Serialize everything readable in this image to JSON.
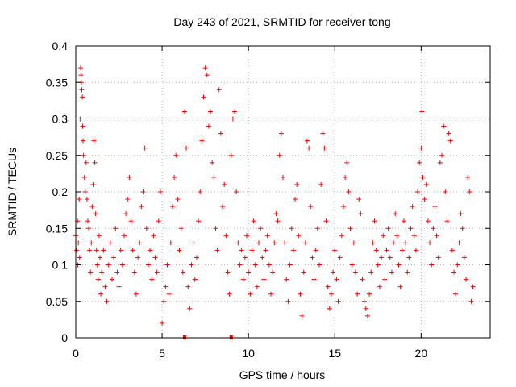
{
  "chart_data": {
    "type": "scatter",
    "title": "Day 243 of 2021, SRMTID for receiver tong",
    "xlabel": "GPS time / hours",
    "ylabel": "SRMTID / TECUs",
    "xlim": [
      0,
      24
    ],
    "ylim": [
      0,
      0.4
    ],
    "grid": true,
    "x_ticks": [
      0,
      5,
      10,
      15,
      20
    ],
    "x_tick_labels": [
      "0",
      "5",
      "10",
      "15",
      "20"
    ],
    "y_ticks": [
      0,
      0.05,
      0.1,
      0.15,
      0.2,
      0.25,
      0.3,
      0.35,
      0.4
    ],
    "y_tick_labels": [
      "0",
      "0.05",
      "0.1",
      "0.15",
      "0.2",
      "0.25",
      "0.3",
      "0.35",
      "0.4"
    ],
    "marker": "+",
    "color": "#ff0000",
    "series": [
      {
        "name": "SRMTID",
        "points": [
          [
            0.0,
            0.14
          ],
          [
            0.05,
            0.12
          ],
          [
            0.1,
            0.16
          ],
          [
            0.12,
            0.1
          ],
          [
            0.15,
            0.13
          ],
          [
            0.2,
            0.19
          ],
          [
            0.22,
            0.11
          ],
          [
            0.25,
            0.3
          ],
          [
            0.28,
            0.37
          ],
          [
            0.3,
            0.36
          ],
          [
            0.32,
            0.35
          ],
          [
            0.35,
            0.34
          ],
          [
            0.38,
            0.33
          ],
          [
            0.4,
            0.29
          ],
          [
            0.42,
            0.27
          ],
          [
            0.45,
            0.25
          ],
          [
            0.5,
            0.22
          ],
          [
            0.55,
            0.2
          ],
          [
            0.6,
            0.24
          ],
          [
            0.65,
            0.19
          ],
          [
            0.7,
            0.16
          ],
          [
            0.75,
            0.15
          ],
          [
            0.8,
            0.12
          ],
          [
            0.85,
            0.09
          ],
          [
            0.9,
            0.13
          ],
          [
            0.95,
            0.18
          ],
          [
            1.0,
            0.21
          ],
          [
            1.05,
            0.27
          ],
          [
            1.1,
            0.24
          ],
          [
            1.15,
            0.17
          ],
          [
            1.2,
            0.12
          ],
          [
            1.25,
            0.1
          ],
          [
            1.3,
            0.08
          ],
          [
            1.35,
            0.14
          ],
          [
            1.4,
            0.11
          ],
          [
            1.45,
            0.06
          ],
          [
            1.5,
            0.09
          ],
          [
            1.6,
            0.12
          ],
          [
            1.7,
            0.07
          ],
          [
            1.8,
            0.05
          ],
          [
            1.9,
            0.1
          ],
          [
            2.0,
            0.13
          ],
          [
            2.1,
            0.08
          ],
          [
            2.2,
            0.11
          ],
          [
            2.3,
            0.15
          ],
          [
            2.4,
            0.09
          ],
          [
            2.5,
            0.07
          ],
          [
            2.6,
            0.12
          ],
          [
            2.7,
            0.1
          ],
          [
            2.8,
            0.14
          ],
          [
            2.9,
            0.17
          ],
          [
            3.0,
            0.19
          ],
          [
            3.1,
            0.22
          ],
          [
            3.2,
            0.16
          ],
          [
            3.3,
            0.12
          ],
          [
            3.4,
            0.09
          ],
          [
            3.5,
            0.06
          ],
          [
            3.6,
            0.11
          ],
          [
            3.7,
            0.13
          ],
          [
            3.8,
            0.18
          ],
          [
            3.9,
            0.2
          ],
          [
            4.0,
            0.26
          ],
          [
            4.1,
            0.15
          ],
          [
            4.2,
            0.1
          ],
          [
            4.3,
            0.12
          ],
          [
            4.4,
            0.08
          ],
          [
            4.5,
            0.14
          ],
          [
            4.6,
            0.11
          ],
          [
            4.7,
            0.09
          ],
          [
            4.8,
            0.16
          ],
          [
            4.9,
            0.2
          ],
          [
            5.0,
            0.02
          ],
          [
            5.1,
            0.05
          ],
          [
            5.2,
            0.07
          ],
          [
            5.3,
            0.1
          ],
          [
            5.4,
            0.06
          ],
          [
            5.5,
            0.13
          ],
          [
            5.6,
            0.18
          ],
          [
            5.7,
            0.22
          ],
          [
            5.8,
            0.25
          ],
          [
            5.9,
            0.19
          ],
          [
            6.0,
            0.12
          ],
          [
            6.1,
            0.15
          ],
          [
            6.2,
            0.09
          ],
          [
            6.3,
            0.31
          ],
          [
            6.4,
            0.26
          ],
          [
            6.5,
            0.07
          ],
          [
            6.6,
            0.04
          ],
          [
            6.7,
            0.1
          ],
          [
            6.8,
            0.13
          ],
          [
            6.9,
            0.08
          ],
          [
            7.0,
            0.11
          ],
          [
            7.1,
            0.16
          ],
          [
            7.2,
            0.2
          ],
          [
            7.3,
            0.27
          ],
          [
            7.4,
            0.33
          ],
          [
            7.5,
            0.37
          ],
          [
            7.6,
            0.36
          ],
          [
            7.7,
            0.29
          ],
          [
            7.8,
            0.31
          ],
          [
            7.9,
            0.24
          ],
          [
            8.0,
            0.22
          ],
          [
            8.1,
            0.15
          ],
          [
            8.2,
            0.12
          ],
          [
            8.3,
            0.34
          ],
          [
            8.4,
            0.28
          ],
          [
            8.5,
            0.18
          ],
          [
            8.6,
            0.21
          ],
          [
            8.7,
            0.14
          ],
          [
            8.8,
            0.09
          ],
          [
            8.9,
            0.06
          ],
          [
            9.0,
            0.25
          ],
          [
            9.1,
            0.3
          ],
          [
            9.2,
            0.31
          ],
          [
            9.3,
            0.2
          ],
          [
            9.4,
            0.13
          ],
          [
            9.5,
            0.1
          ],
          [
            9.6,
            0.12
          ],
          [
            9.7,
            0.08
          ],
          [
            9.8,
            0.11
          ],
          [
            9.9,
            0.14
          ],
          [
            10.0,
            0.09
          ],
          [
            10.1,
            0.06
          ],
          [
            10.2,
            0.12
          ],
          [
            10.3,
            0.16
          ],
          [
            10.4,
            0.1
          ],
          [
            10.5,
            0.07
          ],
          [
            10.6,
            0.13
          ],
          [
            10.7,
            0.15
          ],
          [
            10.8,
            0.11
          ],
          [
            10.9,
            0.08
          ],
          [
            11.0,
            0.12
          ],
          [
            11.1,
            0.14
          ],
          [
            11.2,
            0.1
          ],
          [
            11.3,
            0.06
          ],
          [
            11.4,
            0.09
          ],
          [
            11.5,
            0.13
          ],
          [
            11.6,
            0.17
          ],
          [
            11.7,
            0.16
          ],
          [
            11.8,
            0.25
          ],
          [
            11.9,
            0.28
          ],
          [
            12.0,
            0.22
          ],
          [
            12.1,
            0.13
          ],
          [
            12.2,
            0.08
          ],
          [
            12.3,
            0.05
          ],
          [
            12.4,
            0.1
          ],
          [
            12.5,
            0.15
          ],
          [
            12.6,
            0.12
          ],
          [
            12.7,
            0.19
          ],
          [
            12.8,
            0.21
          ],
          [
            12.9,
            0.14
          ],
          [
            13.0,
            0.06
          ],
          [
            13.1,
            0.03
          ],
          [
            13.2,
            0.09
          ],
          [
            13.3,
            0.13
          ],
          [
            13.4,
            0.27
          ],
          [
            13.5,
            0.26
          ],
          [
            13.6,
            0.18
          ],
          [
            13.7,
            0.11
          ],
          [
            13.8,
            0.08
          ],
          [
            13.9,
            0.12
          ],
          [
            14.0,
            0.15
          ],
          [
            14.1,
            0.1
          ],
          [
            14.2,
            0.21
          ],
          [
            14.3,
            0.28
          ],
          [
            14.4,
            0.26
          ],
          [
            14.5,
            0.16
          ],
          [
            14.6,
            0.07
          ],
          [
            14.7,
            0.04
          ],
          [
            14.8,
            0.06
          ],
          [
            14.9,
            0.09
          ],
          [
            15.0,
            0.12
          ],
          [
            15.1,
            0.08
          ],
          [
            15.2,
            0.05
          ],
          [
            15.3,
            0.11
          ],
          [
            15.4,
            0.14
          ],
          [
            15.5,
            0.18
          ],
          [
            15.6,
            0.22
          ],
          [
            15.7,
            0.24
          ],
          [
            15.8,
            0.2
          ],
          [
            15.9,
            0.15
          ],
          [
            16.0,
            0.1
          ],
          [
            16.1,
            0.13
          ],
          [
            16.2,
            0.09
          ],
          [
            16.3,
            0.06
          ],
          [
            16.4,
            0.19
          ],
          [
            16.5,
            0.17
          ],
          [
            16.6,
            0.08
          ],
          [
            16.7,
            0.05
          ],
          [
            16.8,
            0.04
          ],
          [
            16.9,
            0.03
          ],
          [
            17.0,
            0.06
          ],
          [
            17.1,
            0.09
          ],
          [
            17.2,
            0.13
          ],
          [
            17.3,
            0.16
          ],
          [
            17.4,
            0.12
          ],
          [
            17.5,
            0.1
          ],
          [
            17.6,
            0.07
          ],
          [
            17.7,
            0.11
          ],
          [
            17.8,
            0.14
          ],
          [
            17.9,
            0.08
          ],
          [
            18.0,
            0.12
          ],
          [
            18.1,
            0.15
          ],
          [
            18.2,
            0.11
          ],
          [
            18.3,
            0.09
          ],
          [
            18.4,
            0.13
          ],
          [
            18.5,
            0.17
          ],
          [
            18.6,
            0.14
          ],
          [
            18.7,
            0.1
          ],
          [
            18.8,
            0.07
          ],
          [
            18.9,
            0.12
          ],
          [
            19.0,
            0.16
          ],
          [
            19.1,
            0.13
          ],
          [
            19.2,
            0.09
          ],
          [
            19.3,
            0.11
          ],
          [
            19.4,
            0.15
          ],
          [
            19.5,
            0.18
          ],
          [
            19.6,
            0.14
          ],
          [
            19.7,
            0.12
          ],
          [
            19.8,
            0.2
          ],
          [
            19.9,
            0.24
          ],
          [
            20.0,
            0.26
          ],
          [
            20.05,
            0.31
          ],
          [
            20.1,
            0.22
          ],
          [
            20.2,
            0.19
          ],
          [
            20.3,
            0.21
          ],
          [
            20.4,
            0.16
          ],
          [
            20.5,
            0.13
          ],
          [
            20.6,
            0.1
          ],
          [
            20.7,
            0.15
          ],
          [
            20.8,
            0.18
          ],
          [
            20.9,
            0.14
          ],
          [
            21.0,
            0.11
          ],
          [
            21.1,
            0.24
          ],
          [
            21.2,
            0.25
          ],
          [
            21.3,
            0.29
          ],
          [
            21.4,
            0.2
          ],
          [
            21.5,
            0.16
          ],
          [
            21.6,
            0.28
          ],
          [
            21.7,
            0.27
          ],
          [
            21.8,
            0.12
          ],
          [
            21.9,
            0.09
          ],
          [
            22.0,
            0.06
          ],
          [
            22.1,
            0.1
          ],
          [
            22.2,
            0.13
          ],
          [
            22.3,
            0.17
          ],
          [
            22.4,
            0.15
          ],
          [
            22.5,
            0.11
          ],
          [
            22.6,
            0.08
          ],
          [
            22.7,
            0.22
          ],
          [
            22.8,
            0.2
          ],
          [
            22.9,
            0.05
          ],
          [
            23.0,
            0.07
          ]
        ]
      }
    ],
    "bottom_markers_x": [
      6.3,
      9.0
    ]
  }
}
